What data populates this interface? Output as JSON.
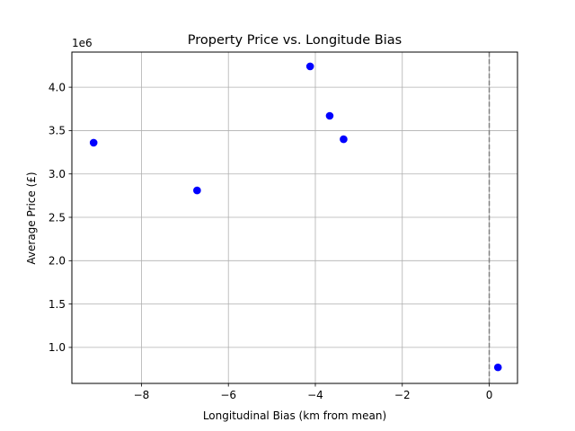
{
  "chart_data": {
    "type": "scatter",
    "title": "Property Price vs. Longitude Bias",
    "xlabel": "Longitudinal Bias (km from mean)",
    "ylabel": "Average Price (£)",
    "y_offset_label": "1e6",
    "xlim": [
      -9.6,
      0.65
    ],
    "ylim": [
      0.585,
      4.405
    ],
    "xticks": [
      -8,
      -6,
      -4,
      -2,
      0
    ],
    "xtick_labels": [
      "−8",
      "−6",
      "−4",
      "−2",
      "0"
    ],
    "yticks": [
      1.0,
      1.5,
      2.0,
      2.5,
      3.0,
      3.5,
      4.0
    ],
    "ytick_labels": [
      "1.0",
      "1.5",
      "2.0",
      "2.5",
      "3.0",
      "3.5",
      "4.0"
    ],
    "grid": true,
    "reference_line": {
      "x": 0,
      "style": "dashed",
      "color": "#808080"
    },
    "marker_color": "#0000ff",
    "series": [
      {
        "x": [
          -9.1,
          -6.72,
          -4.12,
          -3.67,
          -3.35,
          0.2
        ],
        "y": [
          3.36,
          2.81,
          4.24,
          3.67,
          3.4,
          0.77
        ]
      }
    ]
  }
}
